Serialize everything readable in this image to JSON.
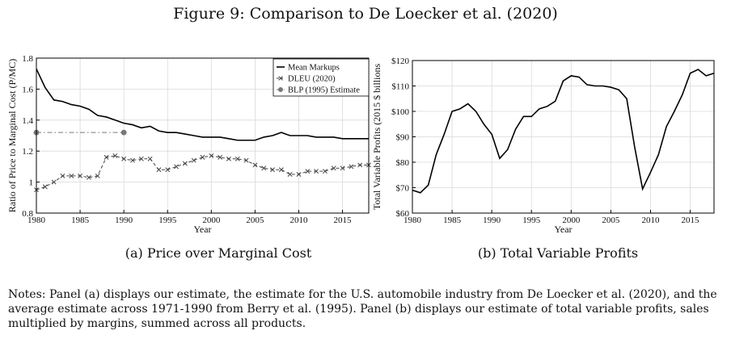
{
  "figure_title": "Figure 9: Comparison to De Loecker et al. (2020)",
  "notes": "Notes: Panel (a) displays our estimate, the estimate for the U.S. automobile industry from De Loecker et al. (2020), and the average estimate across 1971-1990 from Berry et al. (1995). Panel (b) displays our estimate of total variable profits, sales multiplied by margins, summed across all products.",
  "chart_data": [
    {
      "type": "line",
      "caption": "(a) Price over Marginal Cost",
      "xlabel": "Year",
      "ylabel": "Ratio of Price to Marginal Cost (P/MC)",
      "xlim": [
        1980,
        2018
      ],
      "ylim": [
        0.8,
        1.8
      ],
      "xticks": [
        "1980",
        "1985",
        "1990",
        "1995",
        "2000",
        "2005",
        "2010",
        "2015"
      ],
      "yticks": [
        "0.8",
        "1",
        "1.2",
        "1.4",
        "1.6",
        "1.8"
      ],
      "grid": true,
      "legend_position": "top-right",
      "series": [
        {
          "name": "Mean Markups",
          "color": "#000000",
          "style": "solid",
          "x": [
            1980,
            1981,
            1982,
            1983,
            1984,
            1985,
            1986,
            1987,
            1988,
            1989,
            1990,
            1991,
            1992,
            1993,
            1994,
            1995,
            1996,
            1997,
            1998,
            1999,
            2000,
            2001,
            2002,
            2003,
            2004,
            2005,
            2006,
            2007,
            2008,
            2009,
            2010,
            2011,
            2012,
            2013,
            2014,
            2015,
            2016,
            2017,
            2018
          ],
          "y": [
            1.73,
            1.61,
            1.53,
            1.52,
            1.5,
            1.49,
            1.47,
            1.43,
            1.42,
            1.4,
            1.38,
            1.37,
            1.35,
            1.36,
            1.33,
            1.32,
            1.32,
            1.31,
            1.3,
            1.29,
            1.29,
            1.29,
            1.28,
            1.27,
            1.27,
            1.27,
            1.29,
            1.3,
            1.32,
            1.3,
            1.3,
            1.3,
            1.29,
            1.29,
            1.29,
            1.28,
            1.28,
            1.28,
            1.28
          ]
        },
        {
          "name": "DLEU (2020)",
          "color": "#444444",
          "style": "dashed",
          "marker": "x",
          "x": [
            1980,
            1981,
            1982,
            1983,
            1984,
            1985,
            1986,
            1987,
            1988,
            1989,
            1990,
            1991,
            1992,
            1993,
            1994,
            1995,
            1996,
            1997,
            1998,
            1999,
            2000,
            2001,
            2002,
            2003,
            2004,
            2005,
            2006,
            2007,
            2008,
            2009,
            2010,
            2011,
            2012,
            2013,
            2014,
            2015,
            2016,
            2017,
            2018
          ],
          "y": [
            0.95,
            0.97,
            1.0,
            1.04,
            1.04,
            1.04,
            1.03,
            1.04,
            1.16,
            1.17,
            1.15,
            1.14,
            1.15,
            1.15,
            1.08,
            1.08,
            1.1,
            1.12,
            1.14,
            1.16,
            1.17,
            1.16,
            1.15,
            1.15,
            1.14,
            1.11,
            1.09,
            1.08,
            1.08,
            1.05,
            1.05,
            1.07,
            1.07,
            1.07,
            1.09,
            1.09,
            1.1,
            1.11,
            1.11
          ]
        },
        {
          "name": "BLP (1995) Estimate",
          "color": "#777777",
          "style": "dashdot",
          "marker": "circle",
          "x": [
            1980,
            1990
          ],
          "y": [
            1.32,
            1.32
          ]
        }
      ]
    },
    {
      "type": "line",
      "caption": "(b) Total Variable Profits",
      "xlabel": "Year",
      "ylabel": "Total Variable Profits (2015 $ billions",
      "xlim": [
        1980,
        2018
      ],
      "ylim": [
        60,
        120
      ],
      "xticks": [
        "1980",
        "1985",
        "1990",
        "1995",
        "2000",
        "2005",
        "2010",
        "2015"
      ],
      "yticks": [
        "$60",
        "$70",
        "$80",
        "$90",
        "$100",
        "$110",
        "$120"
      ],
      "grid": true,
      "series": [
        {
          "color": "#000000",
          "style": "solid",
          "x": [
            1980,
            1981,
            1982,
            1983,
            1984,
            1985,
            1986,
            1987,
            1988,
            1989,
            1990,
            1991,
            1992,
            1993,
            1994,
            1995,
            1996,
            1997,
            1998,
            1999,
            2000,
            2001,
            2002,
            2003,
            2004,
            2005,
            2006,
            2007,
            2008,
            2009,
            2010,
            2011,
            2012,
            2013,
            2014,
            2015,
            2016,
            2017,
            2018
          ],
          "y": [
            69,
            68,
            71,
            83,
            91,
            100,
            101,
            103,
            100,
            95,
            91,
            81.5,
            85,
            93,
            98,
            98,
            101,
            102,
            104,
            112,
            114,
            113.5,
            110.5,
            110,
            110,
            109.5,
            108.5,
            105,
            86,
            69.5,
            76,
            83,
            94,
            100,
            106.5,
            115,
            116.5,
            114,
            115
          ]
        }
      ]
    }
  ]
}
